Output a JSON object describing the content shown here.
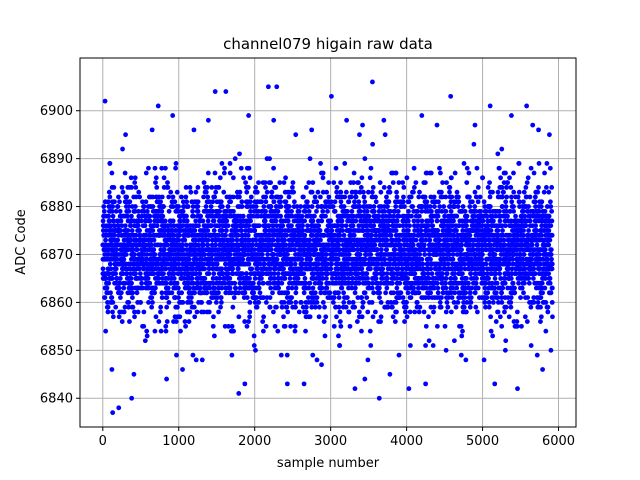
{
  "chart_data": {
    "type": "scatter",
    "title": "channel079 higain raw data",
    "xlabel": "sample number",
    "ylabel": "ADC Code",
    "xlim": [
      -300,
      6230
    ],
    "ylim": [
      6834,
      6911
    ],
    "xticks": [
      0,
      1000,
      2000,
      3000,
      4000,
      5000,
      6000
    ],
    "yticks": [
      6840,
      6850,
      6860,
      6870,
      6880,
      6890,
      6900
    ],
    "grid": true,
    "marker_color": "#0000ff",
    "n_samples": 5920,
    "series": [
      {
        "name": "",
        "points": [
          [
            30,
            6902
          ],
          [
            130,
            6837
          ],
          [
            210,
            6838
          ],
          [
            380,
            6840
          ],
          [
            410,
            6845
          ],
          [
            1050,
            6846
          ],
          [
            1480,
            6904
          ],
          [
            1620,
            6904
          ],
          [
            1790,
            6841
          ],
          [
            2290,
            6905
          ],
          [
            2180,
            6905
          ],
          [
            2650,
            6843
          ],
          [
            2880,
            6847
          ],
          [
            3320,
            6842
          ],
          [
            3450,
            6844
          ],
          [
            3550,
            6906
          ],
          [
            3640,
            6840
          ],
          [
            4030,
            6842
          ],
          [
            4250,
            6843
          ],
          [
            4580,
            6903
          ],
          [
            5100,
            6901
          ],
          [
            5460,
            6842
          ],
          [
            5580,
            6901
          ],
          [
            5790,
            6846
          ],
          [
            730,
            6901
          ],
          [
            840,
            6844
          ],
          [
            1230,
            6848
          ],
          [
            2430,
            6843
          ],
          [
            3010,
            6903
          ],
          [
            3780,
            6845
          ],
          [
            120,
            6846
          ],
          [
            5160,
            6843
          ],
          [
            4780,
            6848
          ],
          [
            1870,
            6843
          ],
          [
            2750,
            6896
          ],
          [
            650,
            6896
          ],
          [
            920,
            6899
          ],
          [
            1200,
            6896
          ],
          [
            1390,
            6898
          ],
          [
            1920,
            6899
          ],
          [
            2250,
            6898
          ],
          [
            2540,
            6895
          ],
          [
            3210,
            6898
          ],
          [
            3420,
            6897
          ],
          [
            3700,
            6898
          ],
          [
            4200,
            6899
          ],
          [
            4400,
            6897
          ],
          [
            4900,
            6897
          ],
          [
            5380,
            6899
          ],
          [
            5660,
            6897
          ],
          [
            5880,
            6895
          ],
          [
            300,
            6895
          ],
          [
            560,
            6852
          ],
          [
            970,
            6849
          ],
          [
            1310,
            6848
          ],
          [
            1700,
            6849
          ],
          [
            2010,
            6850
          ],
          [
            2350,
            6849
          ],
          [
            2820,
            6848
          ],
          [
            3120,
            6851
          ],
          [
            3490,
            6848
          ],
          [
            3900,
            6849
          ],
          [
            4350,
            6851
          ],
          [
            4720,
            6849
          ],
          [
            5020,
            6848
          ],
          [
            5300,
            6850
          ],
          [
            5720,
            6849
          ],
          [
            5900,
            6850
          ]
        ]
      }
    ],
    "density_band": {
      "center": 6871,
      "spread": 9.2,
      "x_start": 0,
      "x_end": 5920
    }
  }
}
